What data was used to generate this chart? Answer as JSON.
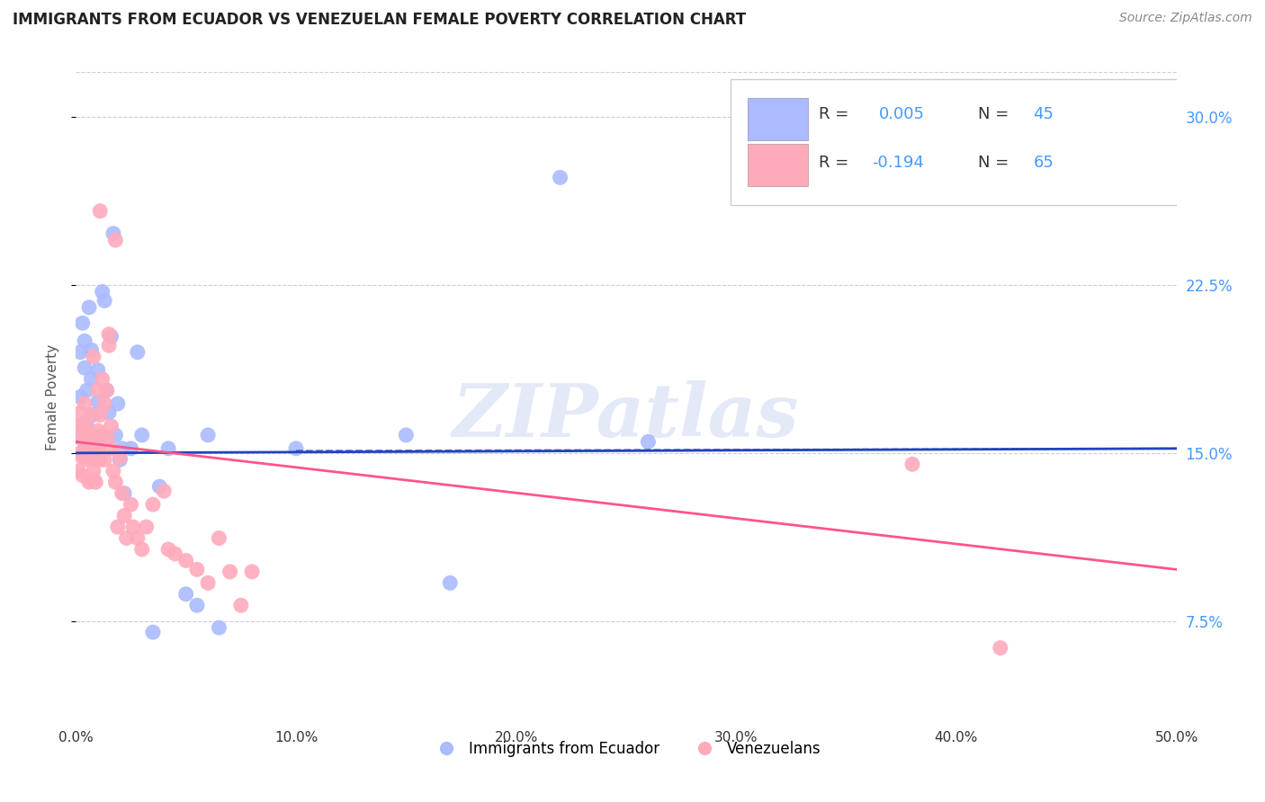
{
  "title": "IMMIGRANTS FROM ECUADOR VS VENEZUELAN FEMALE POVERTY CORRELATION CHART",
  "source": "Source: ZipAtlas.com",
  "xlabel": "",
  "ylabel": "Female Poverty",
  "xlim": [
    0.0,
    0.5
  ],
  "ylim": [
    0.03,
    0.32
  ],
  "xticks": [
    0.0,
    0.1,
    0.2,
    0.3,
    0.4,
    0.5
  ],
  "yticks_right": [
    0.075,
    0.15,
    0.225,
    0.3
  ],
  "ytick_labels_right": [
    "7.5%",
    "15.0%",
    "22.5%",
    "30.0%"
  ],
  "xtick_labels": [
    "0.0%",
    "10.0%",
    "20.0%",
    "30.0%",
    "40.0%",
    "50.0%"
  ],
  "R_ecuador": 0.005,
  "N_ecuador": 45,
  "R_venezuela": -0.194,
  "N_venezuela": 65,
  "color_ecuador": "#aabbff",
  "color_venezuela": "#ffaabb",
  "line_color_ecuador": "#2244bb",
  "line_color_venezuela": "#ff5588",
  "background_color": "#ffffff",
  "grid_color": "#ccccdd",
  "watermark": "ZIPatlas",
  "ecuador_x": [
    0.001,
    0.002,
    0.002,
    0.003,
    0.003,
    0.004,
    0.004,
    0.005,
    0.005,
    0.006,
    0.006,
    0.007,
    0.007,
    0.008,
    0.008,
    0.009,
    0.01,
    0.01,
    0.011,
    0.012,
    0.013,
    0.014,
    0.015,
    0.016,
    0.017,
    0.018,
    0.019,
    0.02,
    0.021,
    0.022,
    0.025,
    0.028,
    0.03,
    0.035,
    0.038,
    0.042,
    0.05,
    0.055,
    0.06,
    0.065,
    0.1,
    0.15,
    0.17,
    0.22,
    0.26
  ],
  "ecuador_y": [
    0.157,
    0.175,
    0.195,
    0.163,
    0.208,
    0.188,
    0.2,
    0.178,
    0.162,
    0.155,
    0.215,
    0.196,
    0.183,
    0.167,
    0.156,
    0.15,
    0.187,
    0.173,
    0.157,
    0.222,
    0.218,
    0.178,
    0.168,
    0.202,
    0.248,
    0.158,
    0.172,
    0.147,
    0.152,
    0.132,
    0.152,
    0.195,
    0.158,
    0.07,
    0.135,
    0.152,
    0.087,
    0.082,
    0.158,
    0.072,
    0.152,
    0.158,
    0.092,
    0.273,
    0.155
  ],
  "venezuela_x": [
    0.001,
    0.001,
    0.002,
    0.002,
    0.002,
    0.003,
    0.003,
    0.003,
    0.004,
    0.004,
    0.004,
    0.005,
    0.005,
    0.006,
    0.006,
    0.007,
    0.007,
    0.007,
    0.008,
    0.008,
    0.008,
    0.009,
    0.009,
    0.01,
    0.01,
    0.01,
    0.011,
    0.011,
    0.011,
    0.012,
    0.012,
    0.013,
    0.013,
    0.014,
    0.014,
    0.015,
    0.015,
    0.016,
    0.016,
    0.017,
    0.018,
    0.018,
    0.019,
    0.02,
    0.021,
    0.022,
    0.023,
    0.025,
    0.026,
    0.028,
    0.03,
    0.032,
    0.035,
    0.04,
    0.042,
    0.045,
    0.05,
    0.055,
    0.06,
    0.065,
    0.07,
    0.075,
    0.08,
    0.38,
    0.42
  ],
  "venezuela_y": [
    0.142,
    0.162,
    0.157,
    0.15,
    0.168,
    0.148,
    0.14,
    0.162,
    0.152,
    0.162,
    0.172,
    0.147,
    0.155,
    0.158,
    0.137,
    0.15,
    0.158,
    0.167,
    0.193,
    0.142,
    0.138,
    0.137,
    0.147,
    0.16,
    0.152,
    0.178,
    0.167,
    0.147,
    0.258,
    0.183,
    0.158,
    0.172,
    0.147,
    0.157,
    0.178,
    0.203,
    0.198,
    0.162,
    0.152,
    0.142,
    0.137,
    0.245,
    0.117,
    0.148,
    0.132,
    0.122,
    0.112,
    0.127,
    0.117,
    0.112,
    0.107,
    0.117,
    0.127,
    0.133,
    0.107,
    0.105,
    0.102,
    0.098,
    0.092,
    0.112,
    0.097,
    0.082,
    0.097,
    0.145,
    0.063
  ],
  "ecuador_line_x": [
    0.0,
    0.5
  ],
  "ecuador_line_y": [
    0.15,
    0.152
  ],
  "venezuela_line_x": [
    0.0,
    0.5
  ],
  "venezuela_line_y": [
    0.155,
    0.098
  ]
}
